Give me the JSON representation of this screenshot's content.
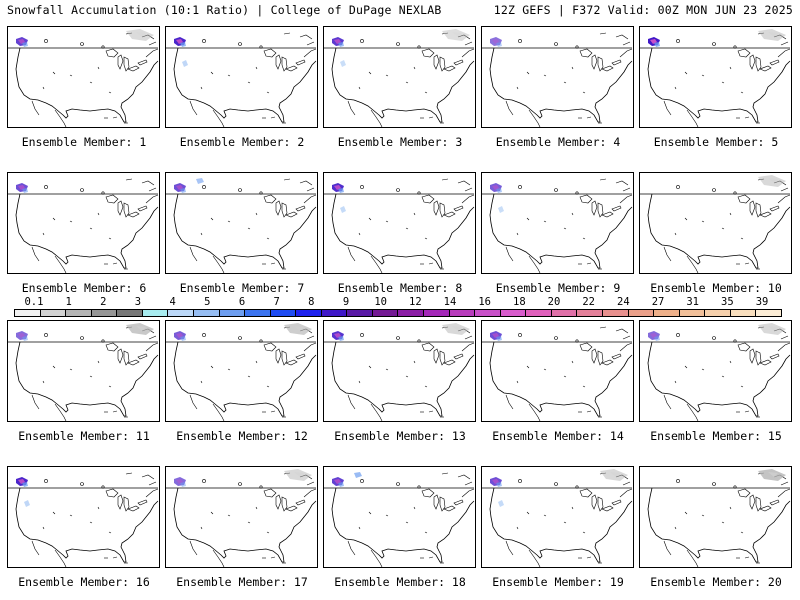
{
  "header": {
    "left": "Snowfall Accumulation (10:1 Ratio) | College of DuPage NEXLAB",
    "right": "12Z GEFS | F372 Valid: 00Z MON JUN 23 2025"
  },
  "members": [
    {
      "label": "Ensemble Member: 1",
      "snow": [
        [
          "nw",
          0.7
        ],
        [
          "ne",
          0.25
        ]
      ]
    },
    {
      "label": "Ensemble Member: 2",
      "snow": [
        [
          "nw",
          0.9
        ],
        [
          "w",
          0.3
        ]
      ]
    },
    {
      "label": "Ensemble Member: 3",
      "snow": [
        [
          "nw",
          0.75
        ],
        [
          "w",
          0.2
        ],
        [
          "ne",
          0.2
        ]
      ]
    },
    {
      "label": "Ensemble Member: 4",
      "snow": [
        [
          "nw",
          0.35
        ]
      ]
    },
    {
      "label": "Ensemble Member: 5",
      "snow": [
        [
          "nw",
          1.0
        ],
        [
          "ne",
          0.3
        ]
      ]
    },
    {
      "label": "Ensemble Member: 6",
      "snow": [
        [
          "nw",
          0.6
        ]
      ]
    },
    {
      "label": "Ensemble Member: 7",
      "snow": [
        [
          "nw",
          0.6
        ],
        [
          "nc",
          0.3
        ]
      ]
    },
    {
      "label": "Ensemble Member: 8",
      "snow": [
        [
          "nw",
          0.85
        ],
        [
          "w",
          0.25
        ]
      ]
    },
    {
      "label": "Ensemble Member: 9",
      "snow": [
        [
          "nw",
          0.5
        ],
        [
          "w",
          0.2
        ]
      ]
    },
    {
      "label": "Ensemble Member: 10",
      "snow": [
        [
          "ne",
          0.3
        ]
      ]
    },
    {
      "label": "Ensemble Member: 11",
      "snow": [
        [
          "nw",
          0.4
        ],
        [
          "ne",
          0.6
        ]
      ]
    },
    {
      "label": "Ensemble Member: 12",
      "snow": [
        [
          "nw",
          0.5
        ],
        [
          "ne",
          0.5
        ]
      ]
    },
    {
      "label": "Ensemble Member: 13",
      "snow": [
        [
          "nw",
          0.8
        ],
        [
          "ne",
          0.3
        ]
      ]
    },
    {
      "label": "Ensemble Member: 14",
      "snow": [
        [
          "nw",
          0.6
        ]
      ]
    },
    {
      "label": "Ensemble Member: 15",
      "snow": [
        [
          "nw",
          0.4
        ],
        [
          "ne",
          0.3
        ]
      ]
    },
    {
      "label": "Ensemble Member: 16",
      "snow": [
        [
          "nw",
          0.9
        ],
        [
          "w",
          0.3
        ]
      ]
    },
    {
      "label": "Ensemble Member: 17",
      "snow": [
        [
          "nw",
          0.4
        ],
        [
          "ne",
          0.3
        ]
      ]
    },
    {
      "label": "Ensemble Member: 18",
      "snow": [
        [
          "nw",
          0.7
        ],
        [
          "nc",
          0.4
        ]
      ]
    },
    {
      "label": "Ensemble Member: 19",
      "snow": [
        [
          "nw",
          0.6
        ],
        [
          "w",
          0.25
        ],
        [
          "ne",
          0.3
        ]
      ]
    },
    {
      "label": "Ensemble Member: 20",
      "snow": [
        [
          "ne",
          0.7
        ]
      ]
    }
  ],
  "colorbar": {
    "labels": [
      "0.1",
      "1",
      "2",
      "3",
      "4",
      "5",
      "6",
      "7",
      "8",
      "9",
      "10",
      "12",
      "14",
      "16",
      "18",
      "20",
      "22",
      "24",
      "27",
      "31",
      "35",
      "39"
    ],
    "colors": [
      "#f2f2f2",
      "#d2d2d2",
      "#b4b4b4",
      "#969696",
      "#787878",
      "#a8ecf0",
      "#bcd8f8",
      "#96bdf2",
      "#6e9ef0",
      "#3c74f0",
      "#1f4cf2",
      "#1e22ee",
      "#3f18c8",
      "#5a1aa6",
      "#741a94",
      "#8c1ea6",
      "#a428b8",
      "#b83cbc",
      "#c850c8",
      "#d85ccc",
      "#e060bc",
      "#e070a8",
      "#e4809a",
      "#e8908e",
      "#eba08a",
      "#eeb08a",
      "#f2c09a",
      "#f6d0ac",
      "#f9dfbe",
      "#fcedd6"
    ]
  }
}
